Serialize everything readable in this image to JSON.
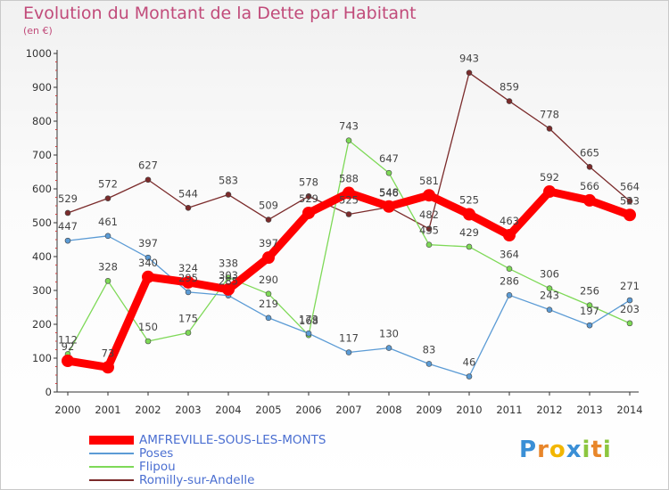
{
  "title": "Evolution du Montant de la Dette par Habitant",
  "subtitle": "(en €)",
  "logo_text": "Proxiti",
  "chart_data": {
    "type": "line",
    "x": [
      "2000",
      "2001",
      "2002",
      "2003",
      "2004",
      "2005",
      "2006",
      "2007",
      "2008",
      "2009",
      "2010",
      "2011",
      "2012",
      "2013",
      "2014"
    ],
    "ylim": [
      0,
      1000
    ],
    "yticks": [
      0,
      100,
      200,
      300,
      400,
      500,
      600,
      700,
      800,
      900,
      1000
    ],
    "grid": false,
    "legend_position": "bottom-left",
    "series": [
      {
        "name": "AMFREVILLE-SOUS-LES-MONTS",
        "color": "#ff0000",
        "values": [
          92,
          73,
          340,
          324,
          303,
          397,
          529,
          588,
          548,
          581,
          525,
          463,
          592,
          566,
          523
        ]
      },
      {
        "name": "Poses",
        "color": "#5b9bd5",
        "values": [
          447,
          461,
          397,
          295,
          285,
          219,
          173,
          117,
          130,
          83,
          46,
          286,
          243,
          197,
          271
        ]
      },
      {
        "name": "Flipou",
        "color": "#7ed957",
        "values": [
          112,
          328,
          150,
          175,
          338,
          290,
          168,
          743,
          647,
          435,
          429,
          364,
          306,
          256,
          203
        ]
      },
      {
        "name": "Romilly-sur-Andelle",
        "color": "#7b2b2b",
        "values": [
          529,
          572,
          627,
          544,
          583,
          509,
          578,
          525,
          546,
          482,
          943,
          859,
          778,
          665,
          564
        ]
      }
    ]
  }
}
